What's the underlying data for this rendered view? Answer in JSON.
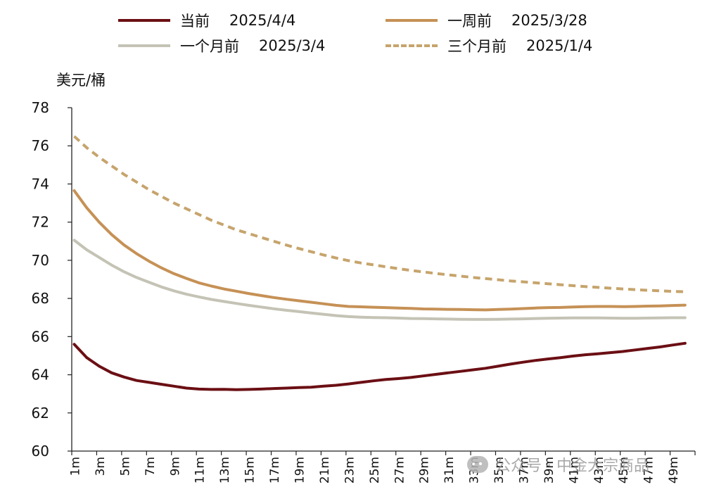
{
  "unit_label": "美元/桶",
  "watermark": "公众号 · 中金大宗商品",
  "chart_data": {
    "type": "line",
    "ylabel": "美元/桶",
    "ylim": [
      60,
      78
    ],
    "yticks": [
      60,
      62,
      64,
      66,
      68,
      70,
      72,
      74,
      76,
      78
    ],
    "categories": [
      "1m",
      "2m",
      "3m",
      "4m",
      "5m",
      "6m",
      "7m",
      "8m",
      "9m",
      "10m",
      "11m",
      "12m",
      "13m",
      "14m",
      "15m",
      "16m",
      "17m",
      "18m",
      "19m",
      "20m",
      "21m",
      "22m",
      "23m",
      "24m",
      "25m",
      "26m",
      "27m",
      "28m",
      "29m",
      "30m",
      "31m",
      "32m",
      "33m",
      "34m",
      "35m",
      "36m",
      "37m",
      "38m",
      "39m",
      "40m",
      "41m",
      "42m",
      "43m",
      "44m",
      "45m",
      "46m",
      "47m",
      "48m",
      "49m",
      "50m"
    ],
    "tick_labels": [
      "1m",
      "3m",
      "5m",
      "7m",
      "9m",
      "11m",
      "13m",
      "15m",
      "17m",
      "19m",
      "21m",
      "23m",
      "25m",
      "27m",
      "29m",
      "31m",
      "33m",
      "35m",
      "37m",
      "39m",
      "41m",
      "43m",
      "45m",
      "47m",
      "49m"
    ],
    "series": [
      {
        "name": "当前",
        "date": "2025/4/4",
        "color": "#6b0f14",
        "dash": "solid",
        "values": [
          65.6,
          64.9,
          64.45,
          64.1,
          63.88,
          63.7,
          63.6,
          63.5,
          63.4,
          63.3,
          63.25,
          63.23,
          63.24,
          63.22,
          63.23,
          63.25,
          63.28,
          63.3,
          63.33,
          63.35,
          63.4,
          63.45,
          63.52,
          63.6,
          63.68,
          63.75,
          63.8,
          63.86,
          63.94,
          64.02,
          64.1,
          64.18,
          64.26,
          64.34,
          64.45,
          64.56,
          64.66,
          64.75,
          64.83,
          64.9,
          64.98,
          65.05,
          65.1,
          65.16,
          65.22,
          65.3,
          65.38,
          65.46,
          65.56,
          65.65
        ]
      },
      {
        "name": "一周前",
        "date": "2025/3/28",
        "color": "#c69156",
        "dash": "solid",
        "values": [
          73.65,
          72.75,
          72.0,
          71.35,
          70.8,
          70.35,
          69.95,
          69.6,
          69.3,
          69.05,
          68.82,
          68.65,
          68.5,
          68.38,
          68.26,
          68.15,
          68.05,
          67.96,
          67.88,
          67.8,
          67.72,
          67.64,
          67.58,
          67.56,
          67.54,
          67.52,
          67.5,
          67.48,
          67.45,
          67.44,
          67.43,
          67.42,
          67.41,
          67.4,
          67.42,
          67.44,
          67.47,
          67.5,
          67.52,
          67.53,
          67.55,
          67.57,
          67.58,
          67.58,
          67.57,
          67.58,
          67.6,
          67.61,
          67.63,
          67.65
        ]
      },
      {
        "name": "一个月前",
        "date": "2025/3/4",
        "color": "#c4c3b5",
        "dash": "solid",
        "values": [
          71.05,
          70.55,
          70.15,
          69.75,
          69.4,
          69.1,
          68.85,
          68.6,
          68.4,
          68.22,
          68.08,
          67.95,
          67.84,
          67.74,
          67.64,
          67.55,
          67.46,
          67.38,
          67.31,
          67.24,
          67.17,
          67.1,
          67.05,
          67.02,
          67.0,
          66.99,
          66.97,
          66.95,
          66.94,
          66.93,
          66.92,
          66.91,
          66.9,
          66.9,
          66.91,
          66.92,
          66.93,
          66.95,
          66.96,
          66.97,
          66.98,
          66.98,
          66.98,
          66.97,
          66.96,
          66.96,
          66.97,
          66.98,
          66.99,
          66.99
        ]
      },
      {
        "name": "三个月前",
        "date": "2025/1/4",
        "color": "#c6a46c",
        "dash": "dashed",
        "values": [
          76.5,
          75.9,
          75.4,
          74.95,
          74.5,
          74.1,
          73.7,
          73.35,
          73.0,
          72.7,
          72.4,
          72.1,
          71.85,
          71.6,
          71.4,
          71.2,
          71.0,
          70.8,
          70.62,
          70.45,
          70.28,
          70.12,
          69.98,
          69.86,
          69.76,
          69.66,
          69.56,
          69.47,
          69.39,
          69.31,
          69.24,
          69.17,
          69.1,
          69.04,
          68.98,
          68.92,
          68.87,
          68.82,
          68.77,
          68.72,
          68.67,
          68.62,
          68.58,
          68.54,
          68.5,
          68.46,
          68.43,
          68.4,
          68.37,
          68.35
        ]
      }
    ]
  }
}
